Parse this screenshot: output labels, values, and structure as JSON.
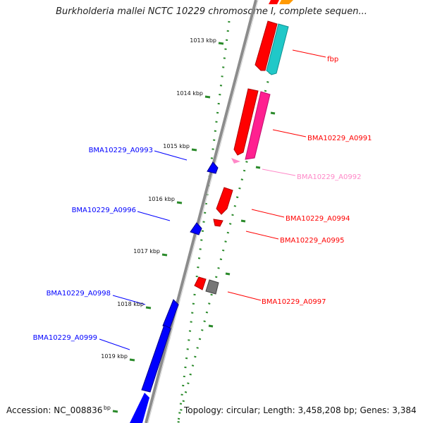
{
  "title": "Burkholderia mallei NCTC 10229 chromosome I, complete sequen...",
  "accession": "Accession: NC_008836",
  "topology": "Topology: circular; Length: 3,458,208 bp; Genes: 3,384",
  "colors": {
    "backbone": "#8c8c8c",
    "tick": "#2a8a2a",
    "forward_gene": "#ff0000",
    "forward_gene_alt": "#ff2090",
    "cds_cyan": "#20c8c8",
    "reverse_gene": "#0000ff",
    "pseudogene": "#777777",
    "faded_label": "#ff88c8"
  },
  "ticks": [
    {
      "label": "1013 kbp"
    },
    {
      "label": "1014 kbp"
    },
    {
      "label": "1015 kbp"
    },
    {
      "label": "1016 kbp"
    },
    {
      "label": "1017 kbp"
    },
    {
      "label": "1018 kbp"
    },
    {
      "label": "1019 kbp"
    },
    {
      "label": "bp"
    }
  ],
  "genes_right": [
    {
      "label": "fbp",
      "color": "#ff0000"
    },
    {
      "label": "BMA10229_A0991",
      "color": "#ff0000"
    },
    {
      "label": "BMA10229_A0992",
      "color": "#ff88c8"
    },
    {
      "label": "BMA10229_A0994",
      "color": "#ff0000"
    },
    {
      "label": "BMA10229_A0995",
      "color": "#ff0000"
    },
    {
      "label": "BMA10229_A0997",
      "color": "#ff0000"
    }
  ],
  "genes_left": [
    {
      "label": "BMA10229_A0993",
      "color": "#0000ff"
    },
    {
      "label": "BMA10229_A0996",
      "color": "#0000ff"
    },
    {
      "label": "BMA10229_A0998",
      "color": "#0000ff"
    },
    {
      "label": "BMA10229_A0999",
      "color": "#0000ff"
    }
  ]
}
